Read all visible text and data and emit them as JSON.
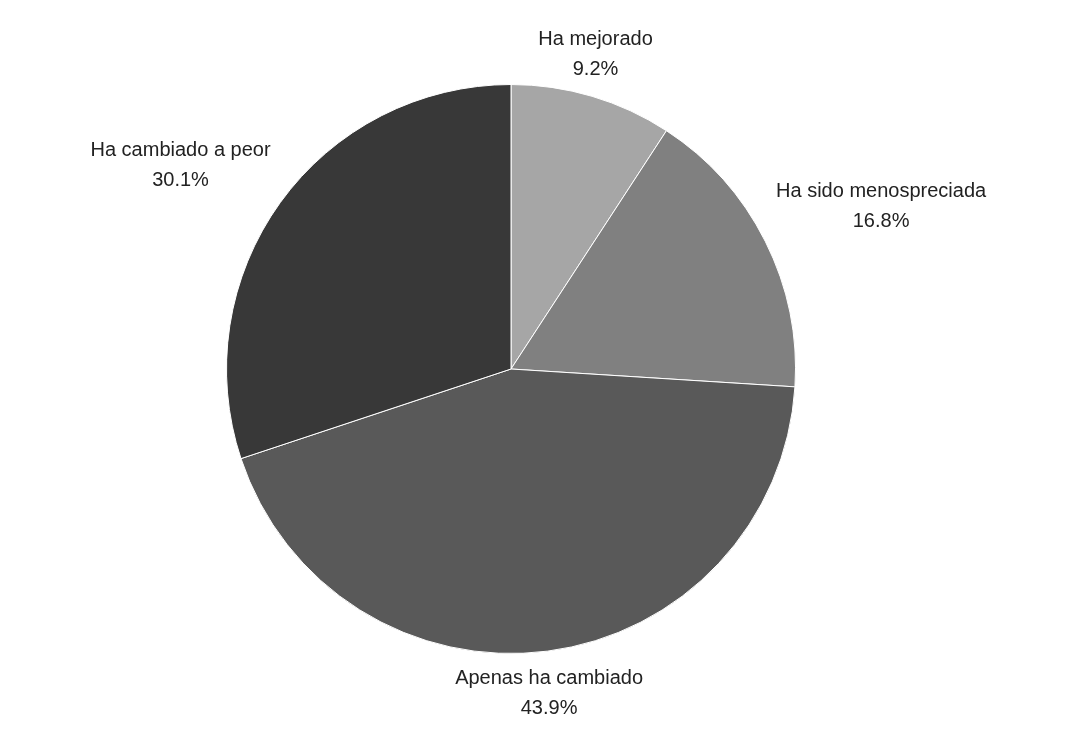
{
  "chart_data": {
    "type": "pie",
    "categories": [
      "Ha mejorado",
      "Ha sido menospreciada",
      "Apenas ha cambiado",
      "Ha cambiado a peor"
    ],
    "values": [
      9.2,
      16.8,
      43.9,
      30.1
    ],
    "colors": [
      "#a6a6a6",
      "#808080",
      "#595959",
      "#383838"
    ],
    "value_labels": [
      "9.2%",
      "16.8%",
      "43.9%",
      "30.1%"
    ],
    "legend": false
  }
}
